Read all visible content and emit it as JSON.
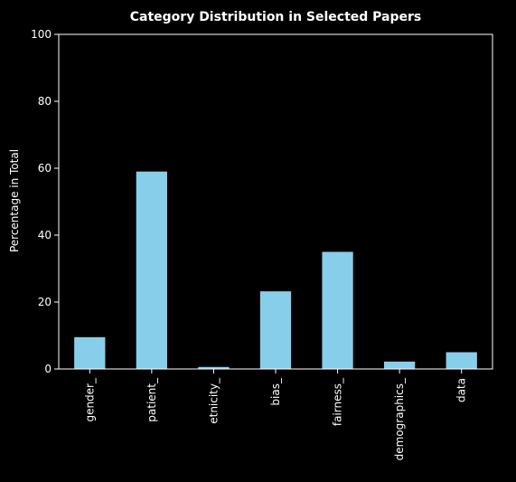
{
  "chart_data": {
    "type": "bar",
    "title": "Category Distribution in Selected Papers",
    "xlabel": "",
    "ylabel": "Percentage in Total",
    "categories": [
      "gender_",
      "patient_",
      "etnicity_",
      "bias_",
      "fairness_",
      "demographics_",
      "data"
    ],
    "values": [
      9.5,
      59,
      0.6,
      23.2,
      35,
      2.2,
      5
    ],
    "ylim": [
      0,
      100
    ],
    "yticks": [
      "0",
      "20",
      "40",
      "60",
      "80",
      "100"
    ],
    "grid": false,
    "legend": "none",
    "colors": {
      "background": "#000000",
      "bar": "#87ceeb",
      "axis": "#ffffff",
      "text": "#ffffff"
    }
  }
}
